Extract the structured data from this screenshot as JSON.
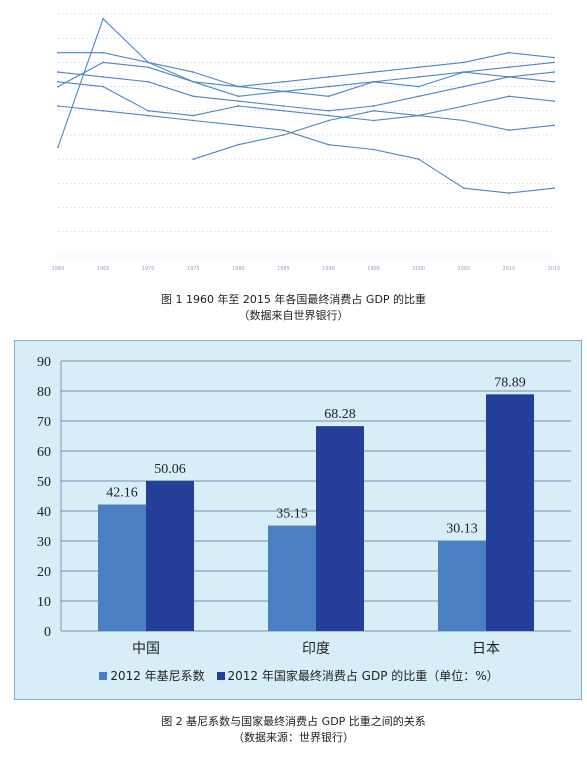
{
  "captions": {
    "fig1_title": "图 1 1960 年至 2015 年各国最终消费占 GDP 的比重",
    "fig1_source": "（数据来自世界银行）",
    "fig2_title": "图 2 基尼系数与国家最终消费占 GDP 比重之间的关系",
    "fig2_source": "（数据来源：世界银行）"
  },
  "colors": {
    "fig1_line": "#4f86c6",
    "fig1_bg": "#ffffff",
    "fig2_bg": "#d7eef8",
    "series1": "#4a7fc1",
    "series2": "#243f99",
    "grid": "#5a6fa0"
  },
  "chart_data": [
    {
      "type": "line",
      "title": "",
      "note": "faint multi-country line chart, series values approximate; y-axis relative",
      "x": [
        1960,
        1965,
        1970,
        1975,
        1980,
        1985,
        1990,
        1995,
        2000,
        2005,
        2010,
        2015
      ],
      "x_ticks": [
        "1960",
        "1965",
        "1970",
        "1975",
        "1980",
        "1985",
        "1990",
        "1995",
        "2000",
        "2005",
        "2010",
        "2015"
      ],
      "ylim": [
        0,
        100
      ],
      "series": [
        {
          "values": [
            45,
            98,
            80,
            72,
            70,
            68,
            66,
            72,
            70,
            76,
            74,
            72
          ]
        },
        {
          "values": [
            84,
            84,
            80,
            76,
            70,
            72,
            74,
            76,
            78,
            80,
            84,
            82
          ]
        },
        {
          "values": [
            70,
            80,
            78,
            72,
            66,
            68,
            70,
            72,
            74,
            76,
            78,
            80
          ]
        },
        {
          "values": [
            76,
            74,
            72,
            66,
            64,
            62,
            60,
            62,
            66,
            70,
            74,
            76
          ]
        },
        {
          "values": [
            72,
            70,
            60,
            58,
            62,
            60,
            58,
            56,
            58,
            62,
            66,
            64
          ]
        },
        {
          "values": [
            null,
            null,
            null,
            40,
            46,
            50,
            56,
            60,
            58,
            56,
            52,
            54
          ]
        },
        {
          "values": [
            62,
            60,
            58,
            56,
            54,
            52,
            46,
            44,
            40,
            28,
            26,
            28
          ]
        }
      ]
    },
    {
      "type": "bar",
      "title": "",
      "categories": [
        "中国",
        "印度",
        "日本"
      ],
      "ylim": [
        0,
        90
      ],
      "yticks": [
        0,
        10,
        20,
        30,
        40,
        50,
        60,
        70,
        80,
        90
      ],
      "ytick_labels": [
        "0",
        "10",
        "20",
        "30",
        "40",
        "50",
        "60",
        "70",
        "80",
        "90"
      ],
      "series": [
        {
          "name": "2012 年基尼系数",
          "values": [
            42.16,
            35.15,
            30.13
          ],
          "labels": [
            "42.16",
            "35.15",
            "30.13"
          ]
        },
        {
          "name": "2012 年国家最终消费占 GDP 的比重（单位：%）",
          "values": [
            50.06,
            68.28,
            78.89
          ],
          "labels": [
            "50.06",
            "68.28",
            "78.89"
          ]
        }
      ],
      "legend": "bottom"
    }
  ]
}
